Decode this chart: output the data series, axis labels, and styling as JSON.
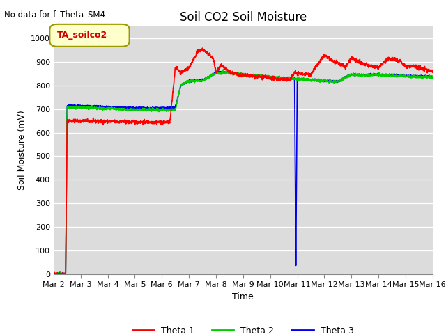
{
  "title": "Soil CO2 Soil Moisture",
  "xlabel": "Time",
  "ylabel": "Soil Moisture (mV)",
  "top_left_note": "No data for f_Theta_SM4",
  "legend_label": "TA_soilco2",
  "ylim": [
    0,
    1050
  ],
  "yticks": [
    0,
    100,
    200,
    300,
    400,
    500,
    600,
    700,
    800,
    900,
    1000
  ],
  "xtick_labels": [
    "Mar 2",
    "Mar 3",
    "Mar 4",
    "Mar 5",
    "Mar 6",
    "Mar 7",
    "Mar 8",
    "Mar 9",
    "Mar 10",
    "Mar 11",
    "Mar 12",
    "Mar 13",
    "Mar 14",
    "Mar 15",
    "Mar 16"
  ],
  "bg_color": "#dcdcdc",
  "line_colors": [
    "#ff0000",
    "#00cc00",
    "#0000ee"
  ],
  "line_names": [
    "Theta 1",
    "Theta 2",
    "Theta 3"
  ],
  "title_fontsize": 12,
  "label_fontsize": 9,
  "tick_fontsize": 8
}
